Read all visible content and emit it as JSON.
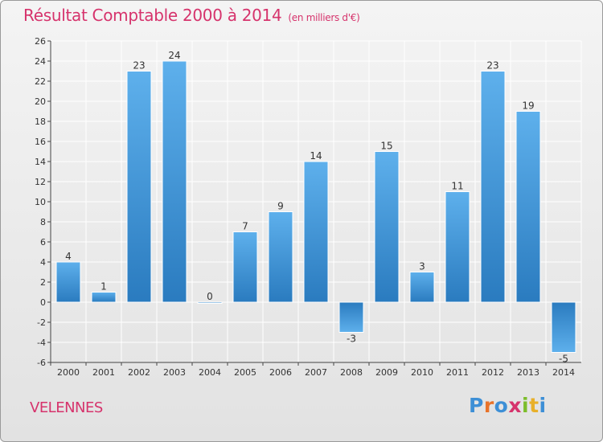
{
  "title": "Résultat Comptable 2000 à 2014",
  "subtitle": "(en milliers d'€)",
  "commune": "VELENNES",
  "logo": {
    "text": "Proxiti",
    "colors": [
      "#3d8fd6",
      "#e8732a",
      "#3d8fd6",
      "#d6336c",
      "#7cbd2a",
      "#e8b02a",
      "#3d8fd6"
    ]
  },
  "colors": {
    "title": "#d6336c",
    "bar_light": "#5eb0ec",
    "bar_dark": "#2a7bbf",
    "grid": "#ffffff"
  },
  "chart_data": {
    "type": "bar",
    "categories": [
      "2000",
      "2001",
      "2002",
      "2003",
      "2004",
      "2005",
      "2006",
      "2007",
      "2008",
      "2009",
      "2010",
      "2011",
      "2012",
      "2013",
      "2014"
    ],
    "values": [
      4,
      1,
      23,
      24,
      0,
      7,
      9,
      14,
      -3,
      15,
      3,
      11,
      23,
      19,
      -5
    ],
    "ylim": [
      -6,
      26
    ],
    "yticks": [
      -6,
      -4,
      -2,
      0,
      2,
      4,
      6,
      8,
      10,
      12,
      14,
      16,
      18,
      20,
      22,
      24,
      26
    ],
    "grid": true
  }
}
